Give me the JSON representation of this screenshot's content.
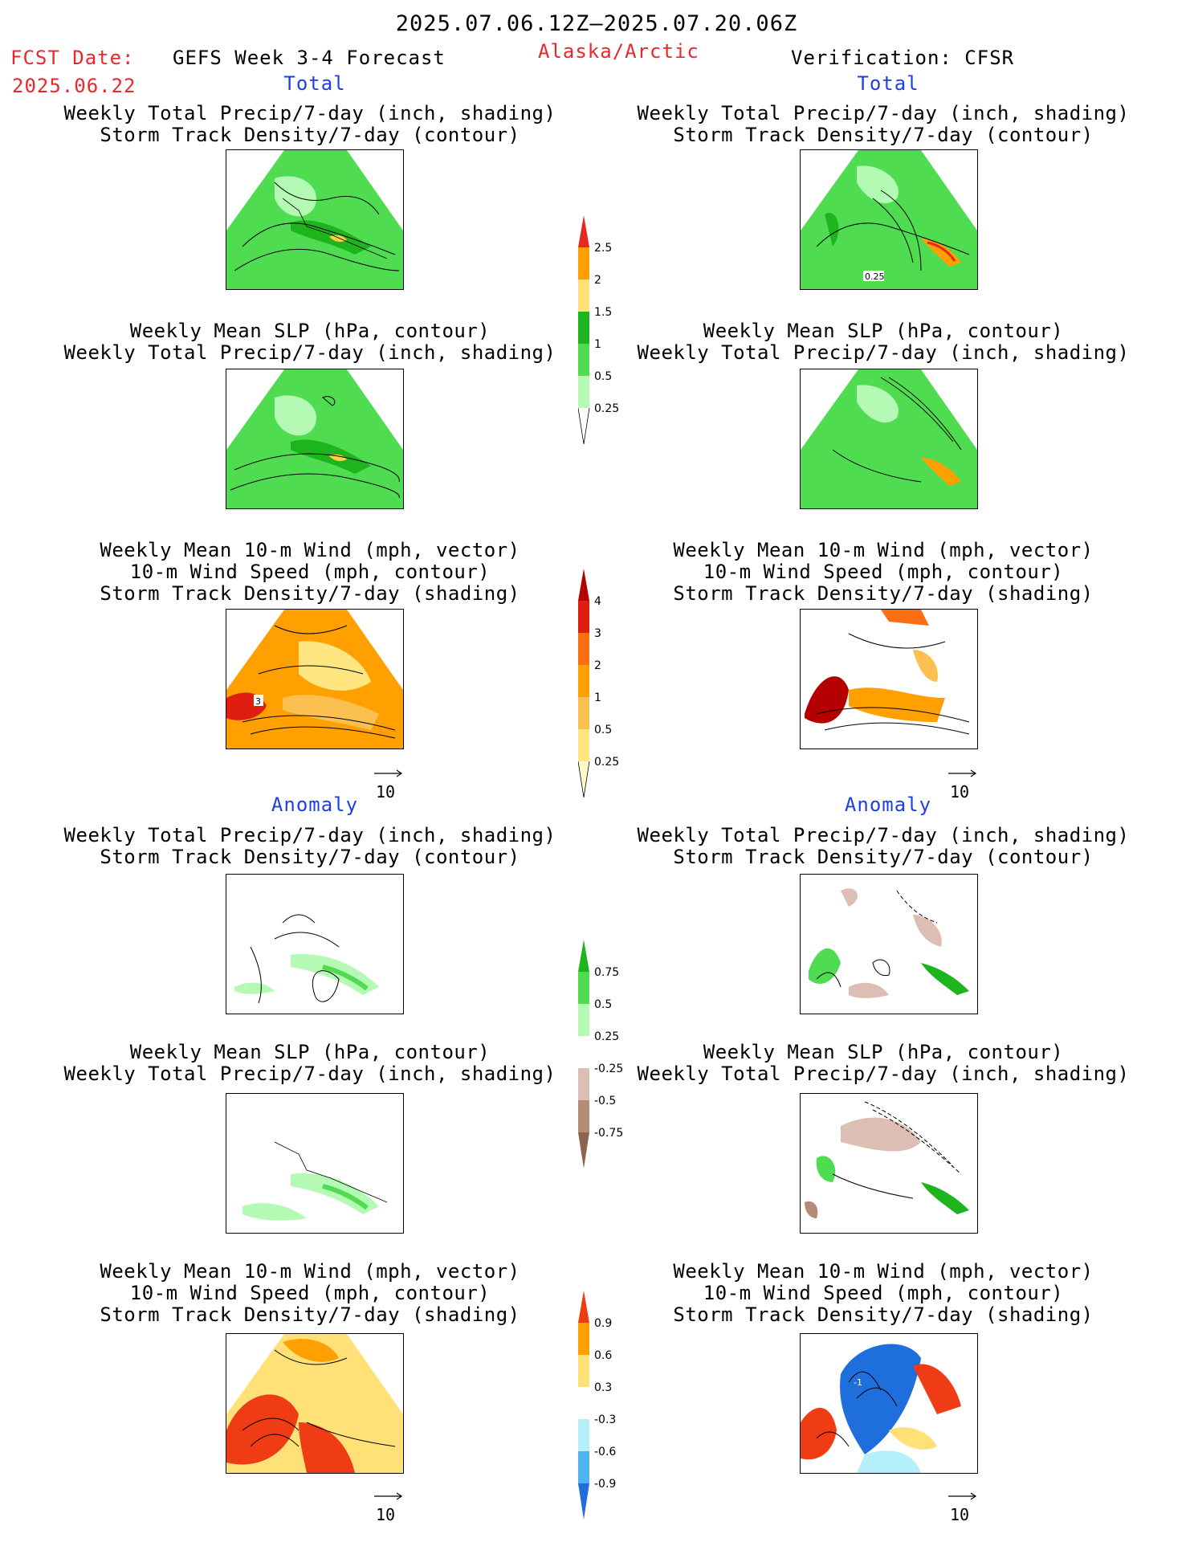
{
  "header": {
    "date_range": "2025.07.06.12Z–2025.07.20.06Z",
    "fcst_label": "FCST Date:",
    "fcst_date": "2025.06.22",
    "forecast_name": "GEFS Week 3-4 Forecast",
    "region": "Alaska/Arctic",
    "verification": "Verification: CFSR"
  },
  "sections": {
    "total": "Total",
    "anomaly": "Anomaly"
  },
  "titles": {
    "precip_storm": [
      "Weekly Total Precip/7-day (inch, shading)",
      "Storm Track Density/7-day (contour)"
    ],
    "slp_precip": [
      "Weekly Mean SLP (hPa, contour)",
      "Weekly Total Precip/7-day (inch, shading)"
    ],
    "wind_storm": [
      "Weekly Mean 10-m Wind (mph, vector)",
      "10-m Wind Speed (mph, contour)",
      "Storm Track Density/7-day (shading)"
    ]
  },
  "panel_labels": {
    "total_cfsr_precip": "0.25",
    "total_gefs_wind": "3",
    "anom_cfsr_wind": "-1"
  },
  "vector_ref": "10",
  "colorbars": {
    "precip_total": {
      "labels": [
        "2.5",
        "2",
        "1.5",
        "1",
        "0.5",
        "0.25"
      ],
      "colors": [
        "#e8281e",
        "#ffa000",
        "#ffe178",
        "#1eb41e",
        "#50dc50",
        "#b4fab4"
      ]
    },
    "storm_total": {
      "labels": [
        "4",
        "3",
        "2",
        "1",
        "0.5",
        "0.25"
      ],
      "colors": [
        "#b40000",
        "#e01e10",
        "#fa6e14",
        "#ffa000",
        "#fac050",
        "#ffe680",
        "#fffac8"
      ]
    },
    "precip_anom": {
      "labels": [
        "0.75",
        "0.5",
        "0.25",
        "-0.25",
        "-0.5",
        "-0.75"
      ],
      "colors": [
        "#1eb41e",
        "#50dc50",
        "#b4fab4",
        "#ffffff",
        "#dcbeb4",
        "#b48c78",
        "#8c6450"
      ]
    },
    "storm_anom": {
      "labels": [
        "0.9",
        "0.6",
        "0.3",
        "-0.3",
        "-0.6",
        "-0.9"
      ],
      "colors": [
        "#f03c14",
        "#ffa000",
        "#ffe178",
        "#ffffff",
        "#b4f0fa",
        "#50b4f0",
        "#1e6edc"
      ]
    }
  }
}
